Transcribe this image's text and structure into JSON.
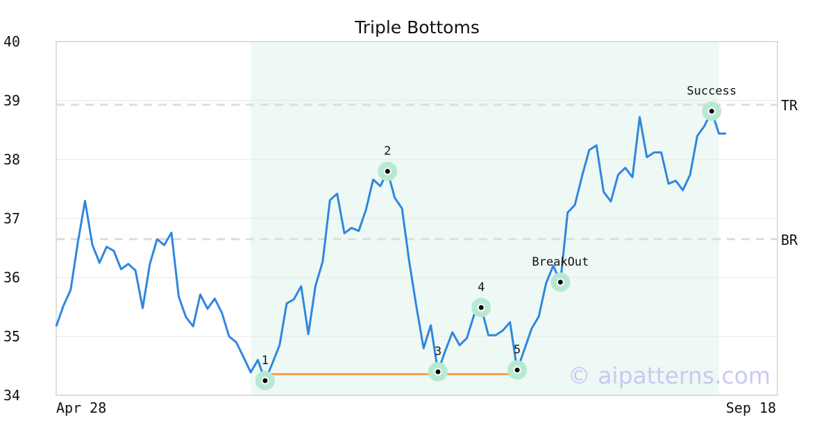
{
  "chart_data": {
    "type": "line",
    "title": "Triple Bottoms",
    "xlabel": "",
    "ylabel": "",
    "ylim": [
      34,
      40
    ],
    "yticks": [
      34,
      35,
      36,
      37,
      38,
      39,
      40
    ],
    "xtick_labels": [
      "Apr 28",
      "Sep 18"
    ],
    "grid": true,
    "line_color": "#2e86de",
    "highlight_color": "#eef8f4",
    "marker_ring_color": "#b7e9d2",
    "support_color": "#f0a04b",
    "level_color": "#dddddd",
    "series": [
      {
        "values": [
          35.17,
          35.52,
          35.79,
          36.59,
          37.3,
          36.56,
          36.25,
          36.52,
          36.45,
          36.14,
          36.23,
          36.12,
          35.48,
          36.23,
          36.65,
          36.55,
          36.76,
          35.68,
          35.33,
          35.17,
          35.71,
          35.47,
          35.64,
          35.4,
          35.0,
          34.9,
          34.65,
          34.39,
          34.6,
          34.25,
          34.54,
          34.85,
          35.56,
          35.63,
          35.85,
          35.04,
          35.86,
          36.27,
          37.31,
          37.42,
          36.75,
          36.84,
          36.79,
          37.15,
          37.66,
          37.55,
          37.8,
          37.35,
          37.17,
          36.28,
          35.51,
          34.8,
          35.19,
          34.4,
          34.75,
          35.07,
          34.85,
          34.97,
          35.36,
          35.49,
          35.02,
          35.02,
          35.1,
          35.24,
          34.43,
          34.78,
          35.13,
          35.34,
          35.9,
          36.2,
          35.92,
          37.1,
          37.23,
          37.72,
          38.16,
          38.24,
          37.45,
          37.29,
          37.74,
          37.86,
          37.7,
          38.72,
          38.04,
          38.12,
          38.12,
          37.59,
          37.64,
          37.48,
          37.74,
          38.4,
          38.57,
          38.82,
          38.44,
          38.44
        ]
      }
    ],
    "highlight_range": [
      27,
      92
    ],
    "support": {
      "from": 29,
      "to": 64,
      "y": 34.36
    },
    "levels": [
      {
        "label": "TR",
        "y": 38.93
      },
      {
        "label": "BR",
        "y": 36.65
      }
    ],
    "annotations": [
      {
        "label": "1",
        "index": 29,
        "y": 34.25,
        "position": "above"
      },
      {
        "label": "2",
        "index": 46,
        "y": 37.8,
        "position": "above"
      },
      {
        "label": "3",
        "index": 53,
        "y": 34.4,
        "position": "above"
      },
      {
        "label": "4",
        "index": 59,
        "y": 35.49,
        "position": "above"
      },
      {
        "label": "5",
        "index": 64,
        "y": 34.43,
        "position": "above"
      },
      {
        "label": "BreakOut",
        "index": 70,
        "y": 35.92,
        "position": "above"
      },
      {
        "label": "Success",
        "index": 91,
        "y": 38.82,
        "position": "above"
      }
    ],
    "watermark": "© aipatterns.com"
  }
}
